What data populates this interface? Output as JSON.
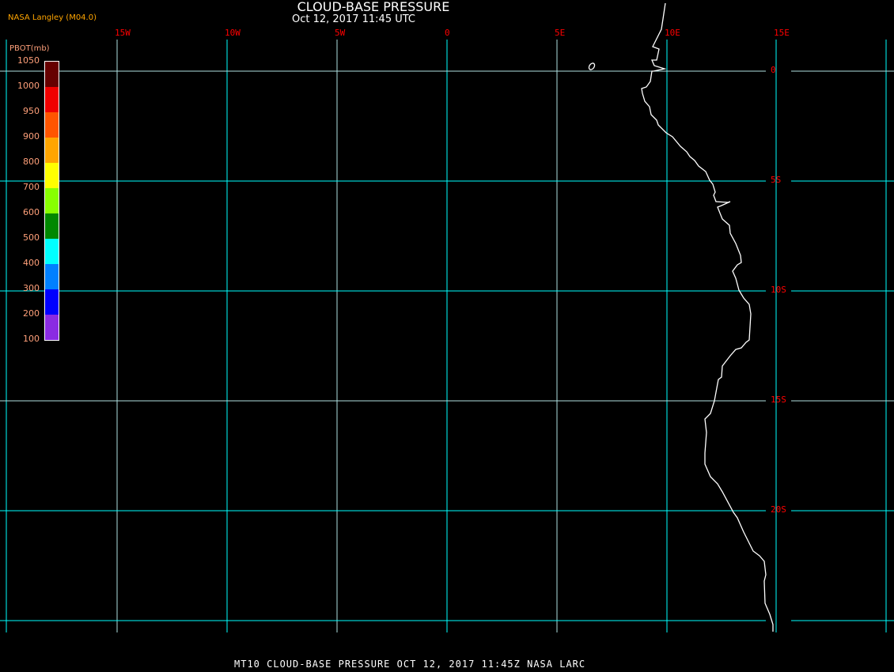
{
  "title": "CLOUD-BASE PRESSURE",
  "subtitle": "Oct 12, 2017 11:45 UTC",
  "credit": "NASA Langley (M04.0)",
  "footer": "MT10  CLOUD-BASE PRESSURE   OCT 12, 2017 11:45Z   NASA LARC",
  "map": {
    "lon_labels": [
      "15W",
      "10W",
      "5W",
      "0",
      "5E",
      "10E",
      "15E"
    ],
    "lat_labels": [
      "0",
      "5S",
      "10S",
      "15S",
      "20S"
    ],
    "grid_color": "#00ffff",
    "label_color": "#ff0000",
    "coastline_color": "#ffffff"
  },
  "colorbar": {
    "title": "PBOT(mb)",
    "ticks": [
      "1050",
      "1000",
      "950",
      "900",
      "800",
      "700",
      "600",
      "500",
      "400",
      "300",
      "200",
      "100"
    ],
    "colors": [
      "#660000",
      "#f00000",
      "#ff5500",
      "#ffa500",
      "#ffff00",
      "#88ff00",
      "#008800",
      "#00ffff",
      "#0080ff",
      "#0000ff",
      "#8a2be2"
    ]
  }
}
